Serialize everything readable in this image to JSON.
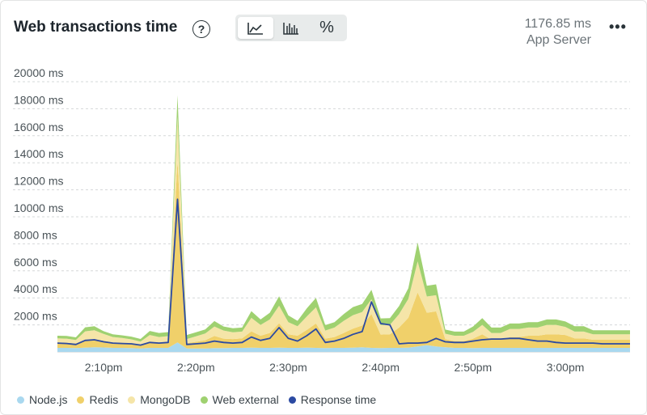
{
  "header": {
    "title": "Web transactions time",
    "help_icon": "question-circle-icon",
    "summary_value": "1176.85 ms",
    "summary_label": "App Server",
    "more_icon": "ellipsis-icon"
  },
  "view_toggle": {
    "options": [
      "area-chart-icon",
      "bar-chart-icon",
      "percent-icon"
    ],
    "selected": "area-chart-icon",
    "percent_label": "%"
  },
  "colors": {
    "nodejs": "#a9d8ef",
    "redis": "#f0d06a",
    "mongodb": "#f5e5a8",
    "web_external": "#9fd170",
    "response_time": "#2b4aa2",
    "grid": "#d5d8d9",
    "axis_text": "#4a5358"
  },
  "chart_data": {
    "type": "area",
    "stacked": true,
    "y_unit": "ms",
    "ylim": [
      0,
      20000
    ],
    "y_ticks": [
      "2000 ms",
      "4000 ms",
      "6000 ms",
      "8000 ms",
      "10000 ms",
      "12000 ms",
      "14000 ms",
      "16000 ms",
      "18000 ms",
      "20000 ms"
    ],
    "y_tick_values": [
      2000,
      4000,
      6000,
      8000,
      10000,
      12000,
      14000,
      16000,
      18000,
      20000
    ],
    "x_range": [
      "2:05pm",
      "3:08pm"
    ],
    "x_ticks": [
      "2:10pm",
      "2:20pm",
      "2:30pm",
      "2:40pm",
      "2:50pm",
      "3:00pm"
    ],
    "x_tick_minutes": [
      5,
      15,
      25,
      35,
      45,
      55
    ],
    "x_minutes": [
      0,
      1,
      2,
      3,
      4,
      5,
      6,
      7,
      8,
      9,
      10,
      11,
      12,
      13,
      14,
      15,
      16,
      17,
      18,
      19,
      20,
      21,
      22,
      23,
      24,
      25,
      26,
      27,
      28,
      29,
      30,
      31,
      32,
      33,
      34,
      35,
      36,
      37,
      38,
      39,
      40,
      41,
      42,
      43,
      44,
      45,
      46,
      47,
      48,
      49,
      50,
      51,
      52,
      53,
      54,
      55,
      56,
      57,
      58,
      59,
      60,
      61,
      62
    ],
    "series": [
      {
        "name": "Node.js",
        "color_key": "nodejs",
        "values": [
          300,
          300,
          280,
          320,
          350,
          330,
          300,
          300,
          280,
          260,
          300,
          300,
          300,
          700,
          250,
          250,
          260,
          280,
          280,
          300,
          300,
          320,
          300,
          300,
          320,
          300,
          300,
          320,
          300,
          280,
          300,
          300,
          320,
          350,
          300,
          280,
          300,
          300,
          320,
          400,
          500,
          400,
          350,
          300,
          300,
          280,
          300,
          300,
          300,
          300,
          300,
          300,
          300,
          300,
          300,
          300,
          300,
          300,
          300,
          300,
          300,
          300,
          300
        ]
      },
      {
        "name": "Redis",
        "color_key": "redis",
        "values": [
          400,
          380,
          350,
          600,
          550,
          500,
          400,
          380,
          350,
          300,
          450,
          400,
          420,
          13500,
          400,
          500,
          600,
          900,
          700,
          650,
          700,
          1200,
          900,
          1100,
          1800,
          1000,
          900,
          1300,
          1800,
          700,
          800,
          1100,
          1400,
          1600,
          2500,
          1000,
          1000,
          1500,
          2200,
          4000,
          2400,
          2600,
          600,
          500,
          500,
          700,
          1000,
          600,
          600,
          800,
          800,
          900,
          900,
          1000,
          1000,
          950,
          700,
          700,
          600,
          600,
          600,
          600,
          600
        ]
      },
      {
        "name": "MongoDB",
        "color_key": "mongodb",
        "values": [
          300,
          300,
          250,
          600,
          700,
          500,
          400,
          350,
          300,
          200,
          500,
          400,
          450,
          3200,
          300,
          400,
          500,
          700,
          600,
          500,
          500,
          1000,
          800,
          1000,
          1300,
          900,
          700,
          1000,
          1200,
          600,
          700,
          900,
          1000,
          1000,
          1100,
          700,
          700,
          1000,
          1400,
          2300,
          1200,
          1200,
          400,
          400,
          400,
          500,
          700,
          500,
          500,
          600,
          600,
          600,
          600,
          700,
          700,
          600,
          500,
          500,
          400,
          400,
          400,
          400,
          400
        ]
      },
      {
        "name": "Web external",
        "color_key": "web_external",
        "values": [
          200,
          200,
          200,
          300,
          300,
          200,
          200,
          200,
          200,
          200,
          300,
          300,
          300,
          1600,
          300,
          300,
          300,
          400,
          300,
          300,
          300,
          500,
          400,
          500,
          700,
          500,
          400,
          600,
          700,
          400,
          400,
          500,
          600,
          600,
          700,
          500,
          500,
          600,
          800,
          1400,
          800,
          800,
          300,
          300,
          300,
          400,
          500,
          400,
          400,
          400,
          400,
          400,
          400,
          400,
          400,
          400,
          400,
          400,
          300,
          300,
          300,
          300,
          300
        ]
      },
      {
        "name": "Response time",
        "color_key": "response_time",
        "kind": "line",
        "values": [
          650,
          620,
          550,
          850,
          900,
          750,
          650,
          620,
          600,
          500,
          700,
          650,
          700,
          11300,
          550,
          600,
          650,
          800,
          700,
          650,
          700,
          1100,
          850,
          1000,
          1800,
          1000,
          800,
          1200,
          1700,
          700,
          800,
          1000,
          1300,
          1500,
          3700,
          2100,
          2000,
          600,
          650,
          650,
          700,
          1000,
          750,
          700,
          700,
          800,
          900,
          950,
          950,
          1000,
          1000,
          900,
          800,
          800,
          700,
          650,
          650,
          650,
          650,
          600,
          600,
          600,
          600
        ]
      }
    ]
  }
}
